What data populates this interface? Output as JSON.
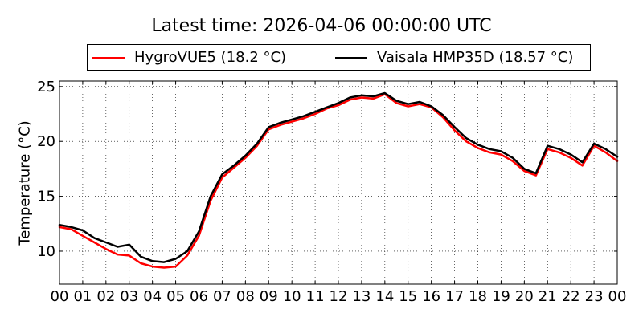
{
  "chart_data": {
    "type": "line",
    "title": "Latest time: 2026-04-06 00:00:00 UTC",
    "ylabel": "Temperature (°C)",
    "xlabel": "",
    "xlim": [
      0,
      24
    ],
    "ylim": [
      7,
      25.5
    ],
    "x_ticks": [
      "00",
      "01",
      "02",
      "03",
      "04",
      "05",
      "06",
      "07",
      "08",
      "09",
      "10",
      "11",
      "12",
      "13",
      "14",
      "15",
      "16",
      "17",
      "18",
      "19",
      "20",
      "21",
      "22",
      "23",
      "00"
    ],
    "y_ticks": [
      10,
      15,
      20,
      25
    ],
    "grid": "dotted",
    "legend_position": "top",
    "x": [
      0,
      0.5,
      1,
      1.5,
      2,
      2.5,
      3,
      3.5,
      4,
      4.5,
      5,
      5.5,
      6,
      6.5,
      7,
      7.5,
      8,
      8.5,
      9,
      9.5,
      10,
      10.5,
      11,
      11.5,
      12,
      12.5,
      13,
      13.5,
      14,
      14.5,
      15,
      15.5,
      16,
      16.5,
      17,
      17.5,
      18,
      18.5,
      19,
      19.5,
      20,
      20.5,
      21,
      21.5,
      22,
      22.5,
      23,
      23.5,
      24
    ],
    "series": [
      {
        "name": "HygroVUE5 (18.2 °C)",
        "color": "#ff0000",
        "values": [
          12.2,
          12.0,
          11.4,
          10.8,
          10.2,
          9.7,
          9.6,
          8.9,
          8.6,
          8.5,
          8.6,
          9.6,
          11.4,
          14.6,
          16.7,
          17.6,
          18.5,
          19.6,
          21.1,
          21.5,
          21.8,
          22.1,
          22.5,
          23.0,
          23.3,
          23.8,
          24.0,
          23.9,
          24.3,
          23.5,
          23.2,
          23.4,
          23.1,
          22.2,
          21.0,
          20.0,
          19.4,
          19.0,
          18.8,
          18.2,
          17.3,
          16.9,
          19.3,
          19.0,
          18.5,
          17.8,
          19.6,
          19.0,
          18.2
        ]
      },
      {
        "name": "Vaisala HMP35D (18.57 °C)",
        "color": "#000000",
        "values": [
          12.4,
          12.2,
          11.9,
          11.2,
          10.8,
          10.4,
          10.6,
          9.5,
          9.1,
          9.0,
          9.3,
          10.0,
          11.8,
          15.0,
          17.0,
          17.8,
          18.7,
          19.8,
          21.3,
          21.7,
          22.0,
          22.3,
          22.7,
          23.1,
          23.5,
          24.0,
          24.2,
          24.1,
          24.4,
          23.7,
          23.4,
          23.6,
          23.2,
          22.4,
          21.3,
          20.3,
          19.7,
          19.3,
          19.1,
          18.5,
          17.5,
          17.1,
          19.6,
          19.3,
          18.8,
          18.1,
          19.8,
          19.3,
          18.6
        ]
      }
    ]
  }
}
